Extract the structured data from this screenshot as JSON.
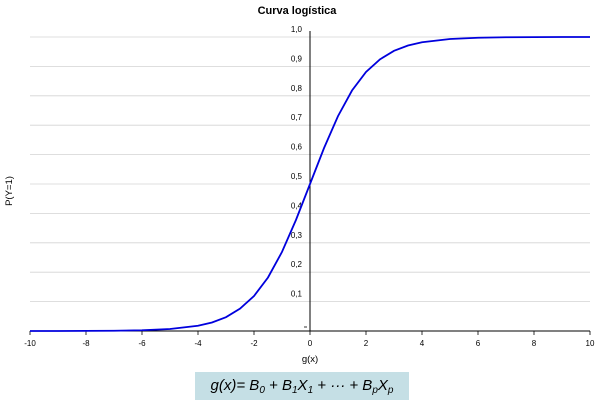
{
  "chart_data": {
    "type": "line",
    "title": "Curva logística",
    "xlabel": "g(x)",
    "ylabel": "P(Y=1)",
    "xlim": [
      -10,
      10
    ],
    "ylim": [
      0,
      1
    ],
    "x_ticks": [
      "-10",
      "-8",
      "-6",
      "-4",
      "-2",
      "0",
      "2",
      "4",
      "6",
      "8",
      "10"
    ],
    "y_ticks": [
      "0,1",
      "0,2",
      "0,3",
      "0,4",
      "0,5",
      "0,6",
      "0,7",
      "0,8",
      "0,9",
      "1,0"
    ],
    "grid": "horizontal",
    "legend": "none",
    "line_color": "#0000dd",
    "series": [
      {
        "x": [
          -10,
          -9,
          -8,
          -7,
          -6,
          -5,
          -4,
          -3.5,
          -3,
          -2.5,
          -2,
          -1.5,
          -1,
          -0.5,
          0,
          0.5,
          1,
          1.5,
          2,
          2.5,
          3,
          3.5,
          4,
          5,
          6,
          7,
          8,
          9,
          10
        ],
        "values": [
          5e-05,
          0.0001,
          0.0003,
          0.0009,
          0.0025,
          0.0067,
          0.018,
          0.029,
          0.047,
          0.076,
          0.119,
          0.182,
          0.269,
          0.378,
          0.5,
          0.622,
          0.731,
          0.818,
          0.881,
          0.924,
          0.953,
          0.971,
          0.982,
          0.9933,
          0.9975,
          0.9991,
          0.9997,
          0.9999,
          0.99995
        ]
      }
    ]
  },
  "formula": {
    "lhs": "g(x)= B",
    "sub0": "0",
    "t1": " + B",
    "sub1a": "1",
    "t1x": "X",
    "sub1b": "1",
    "t2": " + ··· + B",
    "subpa": "p",
    "tpx": "X",
    "subpb": "p"
  }
}
